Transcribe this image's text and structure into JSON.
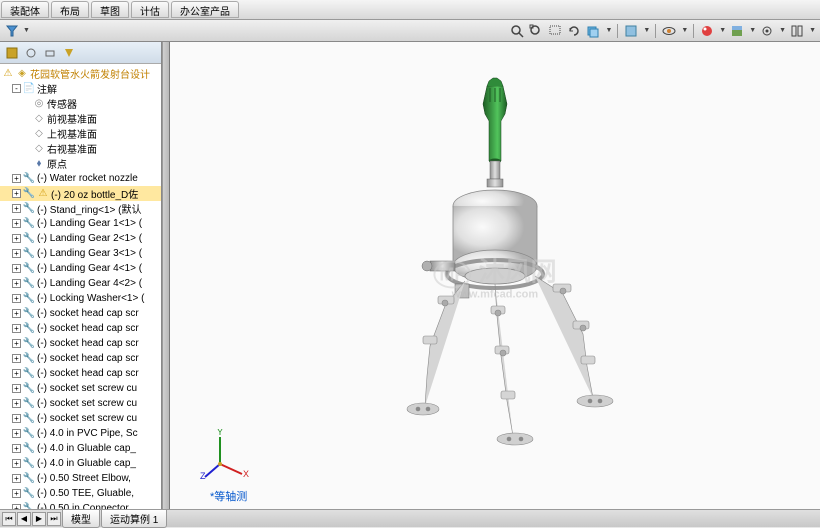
{
  "topbar": {
    "tabs": [
      "装配体",
      "布局",
      "草图",
      "计估",
      "办公室产品"
    ]
  },
  "toolbar": {
    "left_pane_icons": [
      "funnel-icon"
    ],
    "view_icons": [
      "zoom-icon",
      "zoom-fit-icon",
      "zoom-window-icon",
      "prev-view-icon",
      "section-icon",
      "display-style-icon",
      "hide-show-icon",
      "appearance-icon",
      "scene-icon",
      "render-icon",
      "view-settings-icon"
    ]
  },
  "tree": {
    "root": "花园软管水火箭发射台设计",
    "items": [
      {
        "level": 1,
        "exp": "-",
        "icon": "anno",
        "label": "注解"
      },
      {
        "level": 2,
        "exp": "",
        "icon": "sensor",
        "label": "传感器"
      },
      {
        "level": 2,
        "exp": "",
        "icon": "plane",
        "label": "前视基准面"
      },
      {
        "level": 2,
        "exp": "",
        "icon": "plane",
        "label": "上视基准面"
      },
      {
        "level": 2,
        "exp": "",
        "icon": "plane",
        "label": "右视基准面"
      },
      {
        "level": 2,
        "exp": "",
        "icon": "origin",
        "label": "原点"
      },
      {
        "level": 1,
        "exp": "+",
        "icon": "part",
        "label": "(-) Water rocket nozzle"
      },
      {
        "level": 1,
        "exp": "+",
        "icon": "part-warn",
        "label": "(-) 20 oz bottle_D佐",
        "selected": true
      },
      {
        "level": 1,
        "exp": "+",
        "icon": "part",
        "label": "(-) Stand_ring<1> (默认"
      },
      {
        "level": 1,
        "exp": "+",
        "icon": "part",
        "label": "(-) Landing Gear 1<1> ("
      },
      {
        "level": 1,
        "exp": "+",
        "icon": "part",
        "label": "(-) Landing Gear 2<1> ("
      },
      {
        "level": 1,
        "exp": "+",
        "icon": "part",
        "label": "(-) Landing Gear 3<1> ("
      },
      {
        "level": 1,
        "exp": "+",
        "icon": "part",
        "label": "(-) Landing Gear 4<1> ("
      },
      {
        "level": 1,
        "exp": "+",
        "icon": "part",
        "label": "(-) Landing Gear 4<2> ("
      },
      {
        "level": 1,
        "exp": "+",
        "icon": "part",
        "label": "(-) Locking Washer<1> ("
      },
      {
        "level": 1,
        "exp": "+",
        "icon": "part",
        "label": "(-) socket head cap scr"
      },
      {
        "level": 1,
        "exp": "+",
        "icon": "part",
        "label": "(-) socket head cap scr"
      },
      {
        "level": 1,
        "exp": "+",
        "icon": "part",
        "label": "(-) socket head cap scr"
      },
      {
        "level": 1,
        "exp": "+",
        "icon": "part",
        "label": "(-) socket head cap scr"
      },
      {
        "level": 1,
        "exp": "+",
        "icon": "part",
        "label": "(-) socket head cap scr"
      },
      {
        "level": 1,
        "exp": "+",
        "icon": "part",
        "label": "(-) socket set screw cu"
      },
      {
        "level": 1,
        "exp": "+",
        "icon": "part",
        "label": "(-) socket set screw cu"
      },
      {
        "level": 1,
        "exp": "+",
        "icon": "part",
        "label": "(-) socket set screw cu"
      },
      {
        "level": 1,
        "exp": "+",
        "icon": "part",
        "label": "(-) 4.0 in PVC Pipe, Sc"
      },
      {
        "level": 1,
        "exp": "+",
        "icon": "part",
        "label": "(-) 4.0 in Gluable cap_"
      },
      {
        "level": 1,
        "exp": "+",
        "icon": "part",
        "label": "(-) 4.0 in Gluable cap_"
      },
      {
        "level": 1,
        "exp": "+",
        "icon": "part",
        "label": "(-) 0.50 Street Elbow,"
      },
      {
        "level": 1,
        "exp": "+",
        "icon": "part",
        "label": "(-) 0.50 TEE, Gluable,"
      },
      {
        "level": 1,
        "exp": "+",
        "icon": "part",
        "label": "(-) 0.50 in Connector,"
      }
    ]
  },
  "viewport": {
    "watermark_main": "沐风网",
    "watermark_logo": "MF",
    "watermark_sub": "www.mfcad.com",
    "view_label": "*等轴测",
    "axis_x": "X",
    "axis_y": "Y",
    "axis_z": "Z"
  },
  "bottom": {
    "tabs": [
      "模型",
      "运动算例 1"
    ]
  },
  "colors": {
    "bottle_green": "#2f8b3a",
    "bottle_dark": "#1d5c24",
    "tank_light": "#f0f0f0",
    "tank_shade": "#c8c8c8",
    "tank_dark": "#888",
    "metal": "#d0d0d0",
    "metal_dark": "#909090",
    "axis_x": "#d02020",
    "axis_y": "#209020",
    "axis_z": "#2020d0"
  }
}
